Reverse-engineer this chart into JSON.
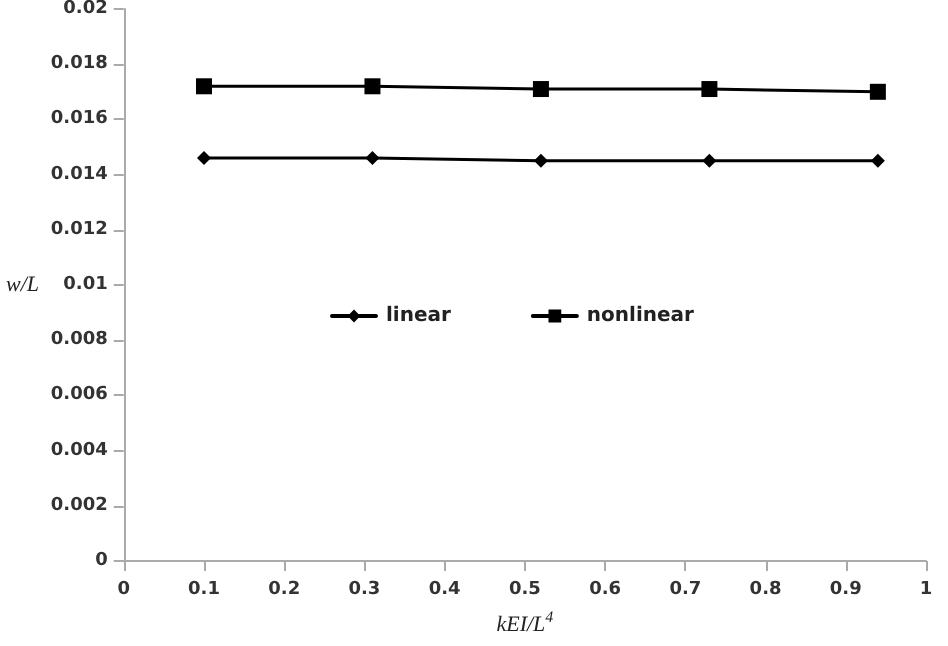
{
  "chart_data": {
    "type": "line",
    "xlabel": "kEI/L$^{4}$",
    "ylabel": "w/L",
    "x": [
      0.1,
      0.31,
      0.52,
      0.73,
      0.94
    ],
    "series": [
      {
        "name": "linear",
        "color": "#000000",
        "marker": "diamond",
        "values": [
          0.0146,
          0.0146,
          0.0145,
          0.0145,
          0.0145
        ]
      },
      {
        "name": "nonlinear",
        "color": "#000000",
        "marker": "square",
        "values": [
          0.0172,
          0.0172,
          0.0171,
          0.0171,
          0.017
        ]
      }
    ],
    "xlim": [
      0,
      1
    ],
    "xticks": [
      0,
      0.1,
      0.2,
      0.3,
      0.4,
      0.5,
      0.6,
      0.7,
      0.8,
      0.9,
      1
    ],
    "ylim": [
      0,
      0.02
    ],
    "yticks": [
      0,
      0.002,
      0.004,
      0.006,
      0.008,
      0.01,
      0.012,
      0.014,
      0.016,
      0.018,
      0.02
    ],
    "grid": false,
    "legend": "center",
    "line_style": "solid"
  }
}
